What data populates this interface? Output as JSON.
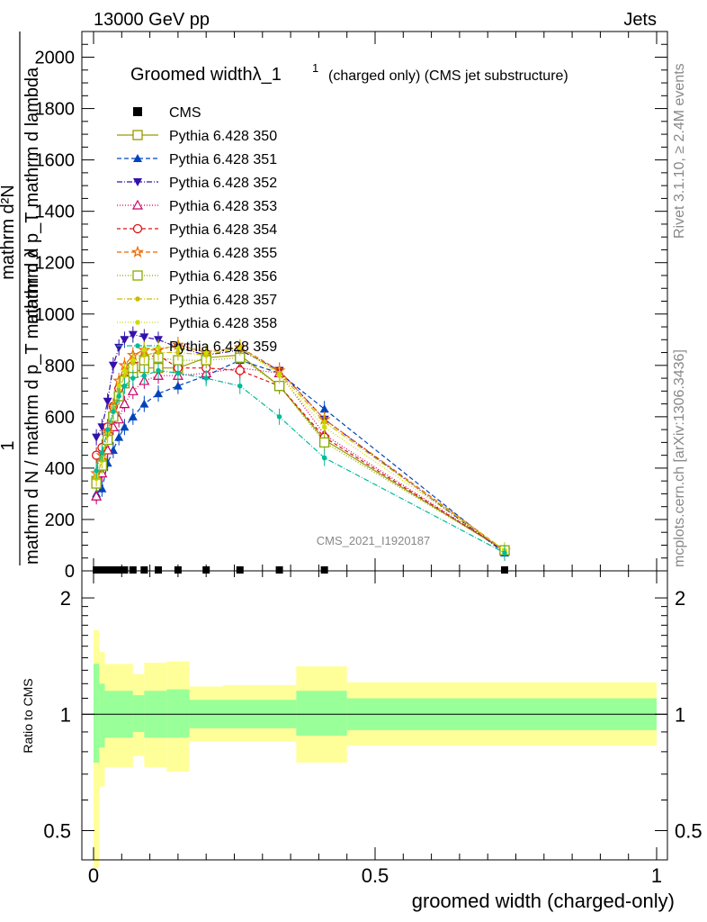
{
  "header": {
    "left": "13000 GeV pp",
    "right": "Jets"
  },
  "side_text": {
    "top": "Rivet 3.1.10, ≥ 2.4M events",
    "bottom": "mcplots.cern.ch [arXiv:1306.3436]"
  },
  "colors": {
    "ratio_inner": "#99ff99",
    "ratio_outer": "#ffff99"
  },
  "chart_data": [
    {
      "type": "line",
      "title_main": "Groomed widthλ_1",
      "title_sup": "1",
      "title_rest": "(charged only) (CMS jet substructure)",
      "ylabel_num": "1",
      "ylabel_den": "mathrm d N / mathrm d p_T mathrm d λ",
      "ylabel_frac_num": "mathrm d²N",
      "ylabel_frac_den": "mathrm d p_T mathrm d lambda",
      "ylim": [
        0,
        2100
      ],
      "yticks": [
        0,
        200,
        400,
        600,
        800,
        1000,
        1200,
        1400,
        1600,
        1800,
        2000
      ],
      "xlim": [
        0,
        1
      ],
      "watermark": "CMS_2021_I1920187",
      "x": [
        0.005,
        0.015,
        0.025,
        0.035,
        0.045,
        0.055,
        0.07,
        0.09,
        0.115,
        0.15,
        0.2,
        0.26,
        0.33,
        0.41,
        0.73
      ],
      "cms": [
        0,
        0,
        0,
        0,
        0,
        0,
        0,
        0,
        0,
        0,
        0,
        0,
        0,
        0,
        0
      ],
      "series": [
        {
          "name": "Pythia 6.428 350",
          "color": "#999900",
          "marker": "square-open",
          "dash": "",
          "values": [
            350,
            420,
            520,
            600,
            680,
            730,
            770,
            790,
            790,
            790,
            830,
            840,
            720,
            510,
            80
          ]
        },
        {
          "name": "Pythia 6.428 351",
          "color": "#0044bb",
          "marker": "triangle-up",
          "dash": "5,3",
          "values": [
            300,
            320,
            420,
            470,
            520,
            560,
            600,
            650,
            690,
            720,
            760,
            820,
            770,
            630,
            70
          ]
        },
        {
          "name": "Pythia 6.428 352",
          "color": "#3311aa",
          "marker": "triangle-down",
          "dash": "6,2,1,2",
          "values": [
            520,
            560,
            660,
            800,
            870,
            900,
            920,
            910,
            900,
            870,
            840,
            860,
            780,
            590,
            70
          ]
        },
        {
          "name": "Pythia 6.428 353",
          "color": "#cc0066",
          "marker": "triangle-open",
          "dash": "1,2",
          "values": [
            290,
            380,
            470,
            560,
            590,
            650,
            700,
            740,
            760,
            760,
            770,
            790,
            770,
            530,
            80
          ]
        },
        {
          "name": "Pythia 6.428 354",
          "color": "#dd1111",
          "marker": "circle-open",
          "dash": "4,3",
          "values": [
            450,
            480,
            560,
            640,
            710,
            750,
            800,
            830,
            840,
            790,
            790,
            780,
            720,
            520,
            80
          ]
        },
        {
          "name": "Pythia 6.428 355",
          "color": "#ee6600",
          "marker": "star-open",
          "dash": "5,3",
          "values": [
            380,
            450,
            540,
            640,
            740,
            800,
            840,
            860,
            860,
            880,
            850,
            870,
            780,
            590,
            80
          ]
        },
        {
          "name": "Pythia 6.428 356",
          "color": "#88aa00",
          "marker": "square-open",
          "dash": "1,2",
          "values": [
            340,
            410,
            510,
            600,
            680,
            740,
            790,
            820,
            830,
            820,
            820,
            830,
            720,
            500,
            80
          ]
        },
        {
          "name": "Pythia 6.428 357",
          "color": "#ccbb00",
          "marker": "dot",
          "dash": "6,2,1,2",
          "values": [
            360,
            430,
            530,
            620,
            700,
            760,
            810,
            840,
            850,
            850,
            840,
            870,
            770,
            580,
            80
          ]
        },
        {
          "name": "Pythia 6.428 358",
          "color": "#ccdd00",
          "marker": "dot",
          "dash": "1,2",
          "values": [
            370,
            440,
            540,
            630,
            720,
            780,
            820,
            860,
            870,
            870,
            850,
            870,
            760,
            560,
            80
          ]
        },
        {
          "name": "Pythia 6.428 359",
          "color": "#00bb99",
          "marker": "dot",
          "dash": "6,2,1,2",
          "values": [
            390,
            460,
            550,
            620,
            680,
            720,
            750,
            760,
            780,
            770,
            750,
            720,
            600,
            440,
            70
          ]
        }
      ]
    },
    {
      "type": "area",
      "ylabel": "Ratio to CMS",
      "ylog": true,
      "ylim": [
        0.42,
        2.35
      ],
      "yticks": [
        0.5,
        1,
        2
      ],
      "ytick_labels": [
        "0.5",
        "1",
        "2"
      ],
      "xlim": [
        0,
        1
      ],
      "xticks": [
        0,
        0.5,
        1
      ],
      "xtick_labels": [
        "0",
        "0.5",
        "1"
      ],
      "xlabel": "groomed width (charged-only)",
      "bins": [
        {
          "lo": 0.0,
          "hi": 0.01,
          "in_lo": 0.75,
          "in_hi": 1.35,
          "out_lo": 0.4,
          "out_hi": 1.65
        },
        {
          "lo": 0.01,
          "hi": 0.02,
          "in_lo": 0.82,
          "in_hi": 1.2,
          "out_lo": 0.65,
          "out_hi": 1.45
        },
        {
          "lo": 0.02,
          "hi": 0.07,
          "in_lo": 0.87,
          "in_hi": 1.15,
          "out_lo": 0.73,
          "out_hi": 1.35
        },
        {
          "lo": 0.07,
          "hi": 0.09,
          "in_lo": 0.9,
          "in_hi": 1.12,
          "out_lo": 0.78,
          "out_hi": 1.27
        },
        {
          "lo": 0.09,
          "hi": 0.13,
          "in_lo": 0.87,
          "in_hi": 1.15,
          "out_lo": 0.73,
          "out_hi": 1.36
        },
        {
          "lo": 0.13,
          "hi": 0.17,
          "in_lo": 0.87,
          "in_hi": 1.16,
          "out_lo": 0.71,
          "out_hi": 1.37
        },
        {
          "lo": 0.17,
          "hi": 0.23,
          "in_lo": 0.92,
          "in_hi": 1.09,
          "out_lo": 0.85,
          "out_hi": 1.18
        },
        {
          "lo": 0.23,
          "hi": 0.36,
          "in_lo": 0.92,
          "in_hi": 1.09,
          "out_lo": 0.85,
          "out_hi": 1.19
        },
        {
          "lo": 0.36,
          "hi": 0.45,
          "in_lo": 0.88,
          "in_hi": 1.15,
          "out_lo": 0.75,
          "out_hi": 1.33
        },
        {
          "lo": 0.45,
          "hi": 1.0,
          "in_lo": 0.91,
          "in_hi": 1.1,
          "out_lo": 0.83,
          "out_hi": 1.21
        }
      ]
    }
  ]
}
